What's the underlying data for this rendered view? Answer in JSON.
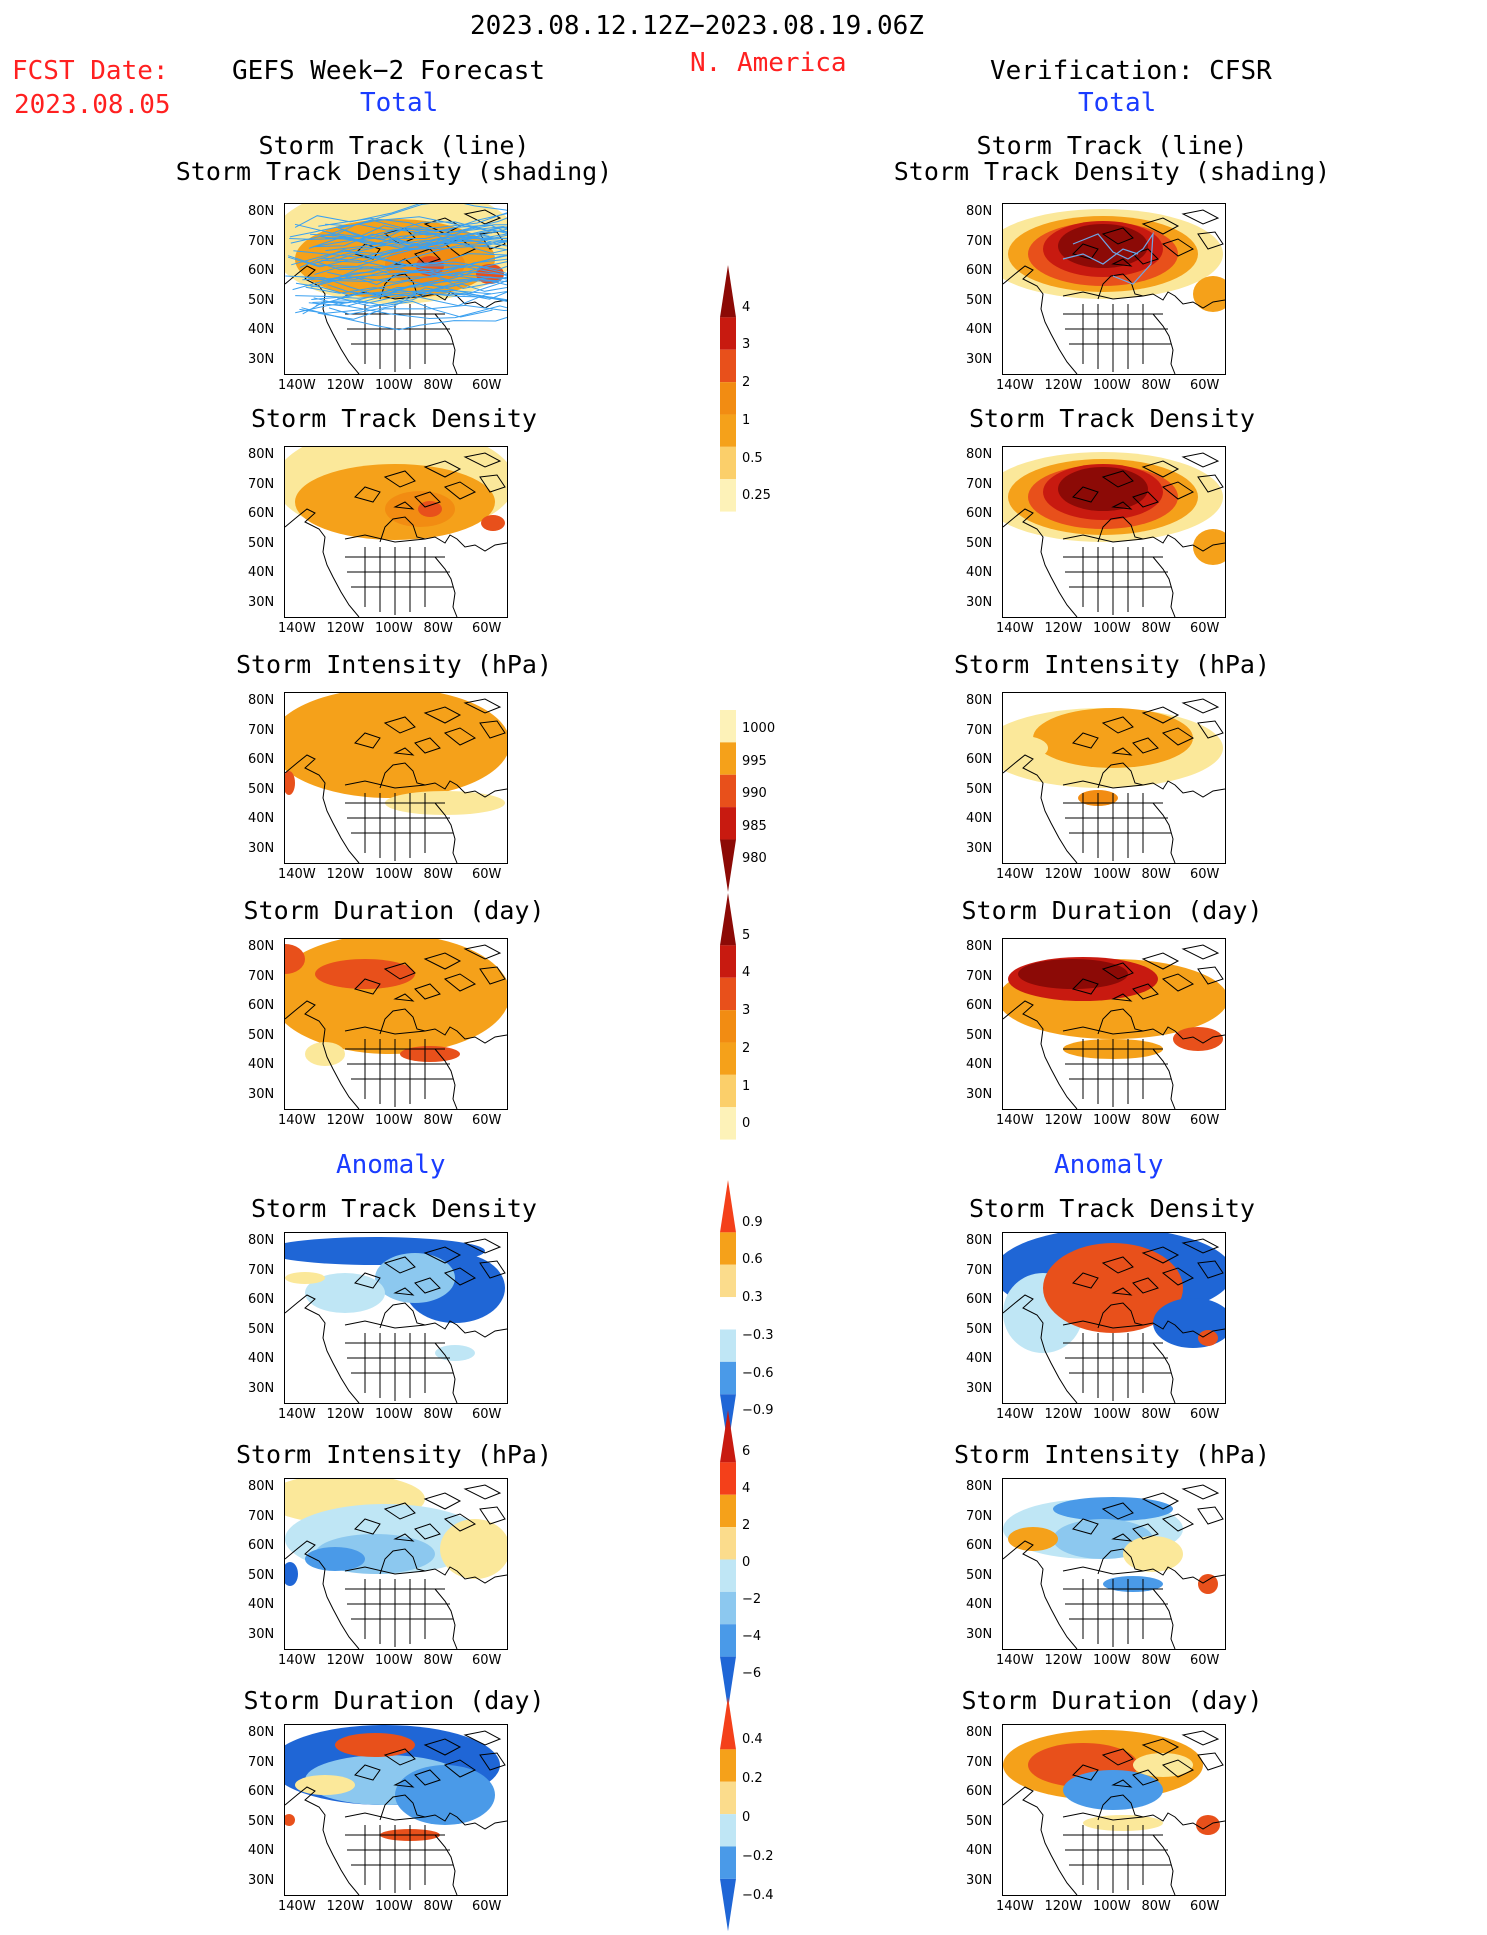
{
  "header": {
    "period": "2023.08.12.12Z−2023.08.19.06Z",
    "region": "N. America",
    "fcst_label": "FCST Date:",
    "fcst_date": "2023.08.05",
    "left_title": "GEFS Week−2 Forecast",
    "right_title": "Verification: CFSR",
    "total_label": "Total",
    "anomaly_label": "Anomaly"
  },
  "panels": {
    "track_line_1": "Storm Track (line)",
    "track_line_2": "Storm Track Density (shading)",
    "density": "Storm Track Density",
    "intensity": "Storm Intensity (hPa)",
    "duration": "Storm Duration (day)"
  },
  "axes": {
    "lat_labels": [
      "80N",
      "70N",
      "60N",
      "50N",
      "40N",
      "30N"
    ],
    "lon_labels": [
      "140W",
      "120W",
      "100W",
      "80W",
      "60W"
    ]
  },
  "colorbars": {
    "density_total": [
      "4",
      "3",
      "2",
      "1",
      "0.5",
      "0.25"
    ],
    "intensity_total": [
      "1000",
      "995",
      "990",
      "985",
      "980"
    ],
    "duration_total": [
      "5",
      "4",
      "3",
      "2",
      "1",
      "0"
    ],
    "density_anom": [
      "0.9",
      "0.6",
      "0.3",
      "−0.3",
      "−0.6",
      "−0.9"
    ],
    "intensity_anom": [
      "6",
      "4",
      "2",
      "0",
      "−2",
      "−4",
      "−6"
    ],
    "duration_anom": [
      "0.4",
      "0.2",
      "0",
      "−0.2",
      "−0.4"
    ]
  },
  "colors": {
    "title_red": "#ff2020",
    "title_blue": "#1a3cff",
    "track_line": "#3aa0f0"
  }
}
